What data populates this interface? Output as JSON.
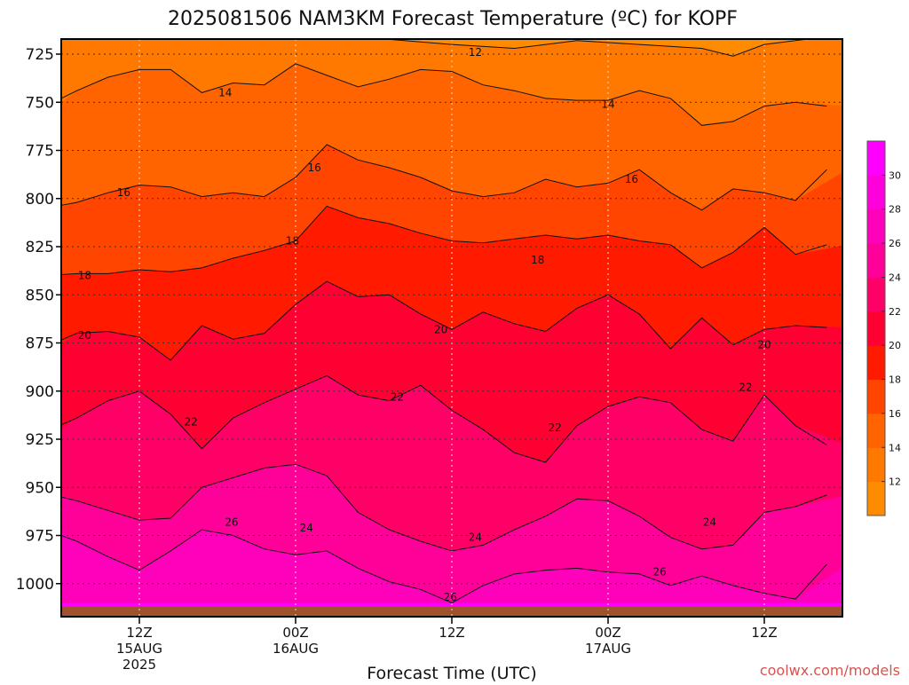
{
  "chart_data": {
    "type": "heatmap",
    "title": "2025081506 NAM3KM Forecast Temperature (ºC) for KOPF",
    "xlabel": "Forecast Time (UTC)",
    "ylabel": "",
    "credit": "coolwx.com/models",
    "y_ticks": [
      725,
      750,
      775,
      800,
      825,
      850,
      875,
      900,
      925,
      950,
      975,
      1000
    ],
    "ylim": [
      1015,
      715
    ],
    "x_range_hours": [
      -6,
      44
    ],
    "x_ticks": [
      {
        "hour": 0,
        "lines": [
          "12Z",
          "15AUG",
          "2025"
        ]
      },
      {
        "hour": 10,
        "lines": [
          "00Z",
          "16AUG"
        ]
      },
      {
        "hour": 20,
        "lines": [
          "12Z"
        ]
      },
      {
        "hour": 30,
        "lines": [
          "00Z",
          "17AUG"
        ]
      },
      {
        "hour": 40,
        "lines": [
          "12Z"
        ]
      }
    ],
    "grid": true,
    "ground_color": "#a0522d",
    "levels": [
      12,
      14,
      16,
      18,
      20,
      22,
      24,
      26,
      28,
      30
    ],
    "level_colors": [
      "#ff8c00",
      "#ff7800",
      "#ff6400",
      "#ff4500",
      "#ff1a00",
      "#ff0033",
      "#ff0066",
      "#ff0099",
      "#ff00bb",
      "#ff00dd",
      "#ff00ff"
    ],
    "colorbar_labels": [
      12,
      14,
      16,
      18,
      20,
      22,
      24,
      26,
      28,
      30
    ],
    "contours": [
      {
        "value": 12,
        "points": [
          [
            -6,
            716
          ],
          [
            0,
            716
          ],
          [
            6,
            716
          ],
          [
            14,
            716
          ],
          [
            20,
            720
          ],
          [
            24,
            722
          ],
          [
            28,
            718
          ],
          [
            32,
            720
          ],
          [
            36,
            722
          ],
          [
            38,
            726
          ],
          [
            40,
            720
          ],
          [
            44,
            716
          ]
        ]
      },
      {
        "value": 14,
        "points": [
          [
            -6,
            752
          ],
          [
            -4,
            744
          ],
          [
            -2,
            737
          ],
          [
            0,
            733
          ],
          [
            2,
            733
          ],
          [
            4,
            745
          ],
          [
            6,
            740
          ],
          [
            8,
            741
          ],
          [
            10,
            730
          ],
          [
            12,
            736
          ],
          [
            14,
            742
          ],
          [
            16,
            738
          ],
          [
            18,
            733
          ],
          [
            20,
            734
          ],
          [
            22,
            741
          ],
          [
            24,
            744
          ],
          [
            26,
            748
          ],
          [
            28,
            749
          ],
          [
            30,
            749
          ],
          [
            32,
            744
          ],
          [
            34,
            748
          ],
          [
            36,
            762
          ],
          [
            38,
            760
          ],
          [
            40,
            752
          ],
          [
            42,
            750
          ],
          [
            44,
            752
          ]
        ]
      },
      {
        "value": 16,
        "points": [
          [
            -6,
            805
          ],
          [
            -4,
            802
          ],
          [
            -2,
            797
          ],
          [
            0,
            793
          ],
          [
            2,
            794
          ],
          [
            4,
            799
          ],
          [
            6,
            797
          ],
          [
            8,
            799
          ],
          [
            10,
            789
          ],
          [
            12,
            772
          ],
          [
            14,
            780
          ],
          [
            16,
            784
          ],
          [
            18,
            789
          ],
          [
            20,
            796
          ],
          [
            22,
            799
          ],
          [
            24,
            797
          ],
          [
            26,
            790
          ],
          [
            28,
            794
          ],
          [
            30,
            792
          ],
          [
            32,
            785
          ],
          [
            34,
            797
          ],
          [
            36,
            806
          ],
          [
            38,
            795
          ],
          [
            40,
            797
          ],
          [
            42,
            801
          ],
          [
            44,
            785
          ]
        ]
      },
      {
        "value": 18,
        "points": [
          [
            -6,
            840
          ],
          [
            -4,
            839
          ],
          [
            -2,
            839
          ],
          [
            0,
            837
          ],
          [
            2,
            838
          ],
          [
            4,
            836
          ],
          [
            6,
            831
          ],
          [
            8,
            827
          ],
          [
            10,
            822
          ],
          [
            12,
            804
          ],
          [
            14,
            810
          ],
          [
            16,
            813
          ],
          [
            18,
            818
          ],
          [
            20,
            822
          ],
          [
            22,
            823
          ],
          [
            24,
            821
          ],
          [
            26,
            819
          ],
          [
            28,
            821
          ],
          [
            30,
            819
          ],
          [
            32,
            822
          ],
          [
            34,
            824
          ],
          [
            36,
            836
          ],
          [
            38,
            828
          ],
          [
            40,
            815
          ],
          [
            42,
            829
          ],
          [
            44,
            824
          ]
        ]
      },
      {
        "value": 20,
        "points": [
          [
            -6,
            877
          ],
          [
            -4,
            870
          ],
          [
            -2,
            869
          ],
          [
            0,
            872
          ],
          [
            2,
            884
          ],
          [
            4,
            866
          ],
          [
            6,
            873
          ],
          [
            8,
            870
          ],
          [
            10,
            855
          ],
          [
            12,
            843
          ],
          [
            14,
            851
          ],
          [
            16,
            850
          ],
          [
            18,
            860
          ],
          [
            20,
            868
          ],
          [
            22,
            859
          ],
          [
            24,
            865
          ],
          [
            26,
            869
          ],
          [
            28,
            857
          ],
          [
            30,
            850
          ],
          [
            32,
            860
          ],
          [
            34,
            878
          ],
          [
            36,
            862
          ],
          [
            38,
            876
          ],
          [
            40,
            868
          ],
          [
            42,
            866
          ],
          [
            44,
            867
          ]
        ]
      },
      {
        "value": 22,
        "points": [
          [
            -6,
            921
          ],
          [
            -4,
            914
          ],
          [
            -2,
            905
          ],
          [
            0,
            900
          ],
          [
            2,
            912
          ],
          [
            4,
            930
          ],
          [
            6,
            914
          ],
          [
            8,
            906
          ],
          [
            10,
            899
          ],
          [
            12,
            892
          ],
          [
            14,
            902
          ],
          [
            16,
            905
          ],
          [
            18,
            897
          ],
          [
            20,
            910
          ],
          [
            22,
            920
          ],
          [
            24,
            932
          ],
          [
            26,
            937
          ],
          [
            28,
            918
          ],
          [
            30,
            908
          ],
          [
            32,
            903
          ],
          [
            34,
            906
          ],
          [
            36,
            920
          ],
          [
            38,
            926
          ],
          [
            40,
            902
          ],
          [
            42,
            918
          ],
          [
            44,
            928
          ]
        ]
      },
      {
        "value": 24,
        "points": [
          [
            -6,
            953
          ],
          [
            -4,
            957
          ],
          [
            -2,
            962
          ],
          [
            0,
            967
          ],
          [
            2,
            966
          ],
          [
            4,
            950
          ],
          [
            6,
            945
          ],
          [
            8,
            940
          ],
          [
            10,
            938
          ],
          [
            12,
            944
          ],
          [
            14,
            963
          ],
          [
            16,
            972
          ],
          [
            18,
            978
          ],
          [
            20,
            983
          ],
          [
            22,
            980
          ],
          [
            24,
            972
          ],
          [
            26,
            965
          ],
          [
            28,
            956
          ],
          [
            30,
            957
          ],
          [
            32,
            965
          ],
          [
            34,
            976
          ],
          [
            36,
            982
          ],
          [
            38,
            980
          ],
          [
            40,
            963
          ],
          [
            42,
            960
          ],
          [
            44,
            954
          ]
        ]
      },
      {
        "value": 26,
        "points": [
          [
            -6,
            972
          ],
          [
            -4,
            978
          ],
          [
            -2,
            986
          ],
          [
            0,
            993
          ],
          [
            2,
            983
          ],
          [
            4,
            972
          ],
          [
            6,
            975
          ],
          [
            8,
            982
          ],
          [
            10,
            985
          ],
          [
            12,
            983
          ],
          [
            14,
            992
          ],
          [
            16,
            999
          ],
          [
            18,
            1003
          ],
          [
            20,
            1010
          ],
          [
            22,
            1001
          ],
          [
            24,
            995
          ],
          [
            26,
            993
          ],
          [
            28,
            992
          ],
          [
            30,
            994
          ],
          [
            32,
            995
          ],
          [
            34,
            1001
          ],
          [
            36,
            996
          ],
          [
            38,
            1001
          ],
          [
            40,
            1005
          ],
          [
            42,
            1008
          ],
          [
            44,
            990
          ]
        ]
      }
    ],
    "labels": [
      {
        "text": "12",
        "hour": 21.5,
        "p": 724
      },
      {
        "text": "14",
        "hour": 5.5,
        "p": 745
      },
      {
        "text": "14",
        "hour": 30,
        "p": 751
      },
      {
        "text": "16",
        "hour": 11.2,
        "p": 784
      },
      {
        "text": "16",
        "hour": -1,
        "p": 797
      },
      {
        "text": "16",
        "hour": 31.5,
        "p": 790
      },
      {
        "text": "18",
        "hour": 9.8,
        "p": 822
      },
      {
        "text": "18",
        "hour": 25.5,
        "p": 832
      },
      {
        "text": "18",
        "hour": -3.5,
        "p": 840
      },
      {
        "text": "20",
        "hour": 19.3,
        "p": 868
      },
      {
        "text": "20",
        "hour": -3.5,
        "p": 871
      },
      {
        "text": "20",
        "hour": 40,
        "p": 876
      },
      {
        "text": "22",
        "hour": 16.5,
        "p": 903
      },
      {
        "text": "22",
        "hour": 3.3,
        "p": 916
      },
      {
        "text": "22",
        "hour": 26.6,
        "p": 919
      },
      {
        "text": "22",
        "hour": 38.8,
        "p": 898
      },
      {
        "text": "24",
        "hour": 10.7,
        "p": 971
      },
      {
        "text": "24",
        "hour": 21.5,
        "p": 976
      },
      {
        "text": "24",
        "hour": 36.5,
        "p": 968
      },
      {
        "text": "26",
        "hour": 5.9,
        "p": 968
      },
      {
        "text": "26",
        "hour": 33.3,
        "p": 994
      },
      {
        "text": "26",
        "hour": 19.9,
        "p": 1007
      }
    ]
  }
}
